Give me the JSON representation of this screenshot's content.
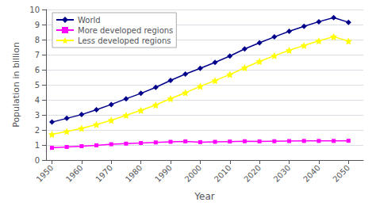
{
  "chart_data": {
    "type": "line",
    "xlabel": "Year",
    "ylabel": "Population in billion",
    "x": [
      1950,
      1955,
      1960,
      1965,
      1970,
      1975,
      1980,
      1985,
      1990,
      1995,
      2000,
      2005,
      2010,
      2015,
      2020,
      2025,
      2030,
      2035,
      2040,
      2045,
      2050
    ],
    "series": [
      {
        "name": "World",
        "color": "#00008B",
        "marker": "diamond",
        "values": [
          2.52,
          2.77,
          3.02,
          3.34,
          3.69,
          4.07,
          4.43,
          4.83,
          5.29,
          5.71,
          6.09,
          6.49,
          6.91,
          7.38,
          7.79,
          8.18,
          8.55,
          8.88,
          9.19,
          9.46,
          9.15
        ]
      },
      {
        "name": "More developed regions",
        "color": "#FF00FF",
        "marker": "square",
        "values": [
          0.81,
          0.87,
          0.92,
          0.98,
          1.05,
          1.09,
          1.13,
          1.17,
          1.21,
          1.24,
          1.19,
          1.21,
          1.23,
          1.25,
          1.24,
          1.25,
          1.26,
          1.27,
          1.27,
          1.27,
          1.28
        ]
      },
      {
        "name": "Less developed regions",
        "color": "#FFFF00",
        "marker": "star",
        "values": [
          1.71,
          1.9,
          2.1,
          2.36,
          2.64,
          2.97,
          3.3,
          3.66,
          4.08,
          4.47,
          4.9,
          5.28,
          5.68,
          6.13,
          6.55,
          6.93,
          7.29,
          7.61,
          7.92,
          8.19,
          7.9
        ]
      }
    ],
    "xlim": [
      1948,
      2055
    ],
    "xticks": [
      1950,
      1960,
      1970,
      1980,
      1990,
      2000,
      2010,
      2020,
      2030,
      2040,
      2050
    ],
    "ylim": [
      0,
      10
    ],
    "yticks": [
      0,
      1,
      2,
      3,
      4,
      5,
      6,
      7,
      8,
      9,
      10
    ],
    "grid": true,
    "legend": "upper left"
  }
}
